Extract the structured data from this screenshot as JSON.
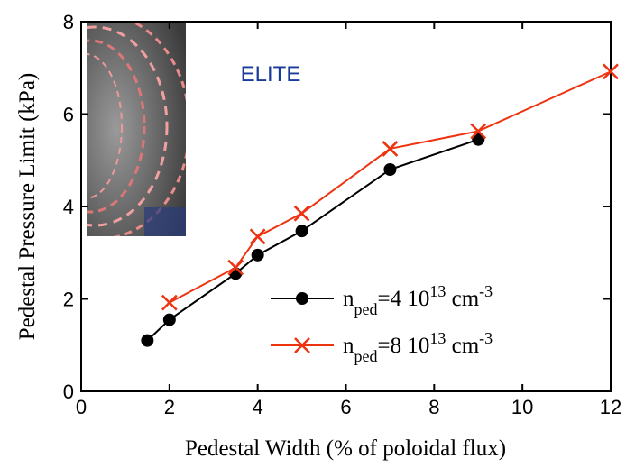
{
  "chart_data": {
    "type": "line",
    "x_label": "Pedestal Width (% of poloidal flux)",
    "y_label": "Pedestal Pressure Limit (kPa)",
    "annotation": "ELITE",
    "xlim": [
      0,
      12
    ],
    "xticks": [
      0,
      2,
      4,
      6,
      8,
      10,
      12
    ],
    "ylim": [
      0,
      8
    ],
    "yticks": [
      0,
      2,
      4,
      6,
      8
    ],
    "series": [
      {
        "name": "n_ped=4 10^13 cm^-3",
        "color": "#000000",
        "marker": "circle",
        "x": [
          1.5,
          2,
          3.5,
          4,
          5,
          7,
          9
        ],
        "values": [
          1.1,
          1.55,
          2.55,
          2.95,
          3.47,
          4.8,
          5.45
        ]
      },
      {
        "name": "n_ped=8 10^13 cm^-3",
        "color": "#ee3311",
        "marker": "x",
        "x": [
          2,
          3.5,
          4,
          5,
          7,
          9,
          12
        ],
        "values": [
          1.92,
          2.68,
          3.35,
          3.85,
          5.25,
          5.63,
          6.92
        ]
      }
    ]
  }
}
